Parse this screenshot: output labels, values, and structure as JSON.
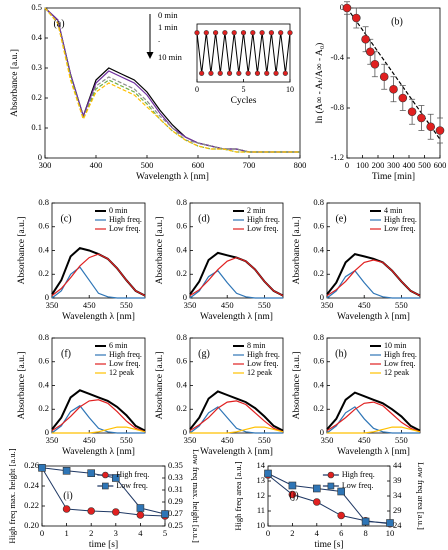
{
  "chart_data": [
    {
      "type": "line",
      "label": "(a)",
      "xlabel": "Wavelength λ [nm]",
      "ylabel": "Absorbance [a.u.]",
      "annotations": [
        "0 min",
        "1 min",
        ".",
        "10 min"
      ],
      "xlim": [
        300,
        800
      ],
      "xticks": [
        300,
        400,
        500,
        600,
        700,
        800
      ],
      "ylim": [
        0,
        0.5
      ],
      "yticks": [
        0,
        0.1,
        0.2,
        0.3,
        0.4,
        0.5
      ],
      "x": [
        300,
        325,
        350,
        375,
        400,
        425,
        450,
        475,
        500,
        525,
        550,
        575,
        600,
        625,
        650,
        675,
        700,
        725,
        750,
        775,
        800
      ],
      "series": [
        {
          "color": "#000000",
          "values": [
            0.5,
            0.46,
            0.28,
            0.14,
            0.26,
            0.3,
            0.28,
            0.26,
            0.22,
            0.16,
            0.11,
            0.07,
            0.05,
            0.04,
            0.03,
            0.03,
            0.02,
            0.02,
            0.02,
            0.02,
            0.02
          ]
        },
        {
          "color": "#7030a0",
          "values": [
            0.5,
            0.46,
            0.28,
            0.14,
            0.25,
            0.29,
            0.27,
            0.25,
            0.21,
            0.15,
            0.1,
            0.07,
            0.05,
            0.04,
            0.03,
            0.03,
            0.02,
            0.02,
            0.02,
            0.02,
            0.02
          ]
        },
        {
          "color": "#8c8c8c",
          "dash": true,
          "values": [
            0.5,
            0.45,
            0.27,
            0.13,
            0.24,
            0.27,
            0.25,
            0.23,
            0.19,
            0.14,
            0.1,
            0.06,
            0.05,
            0.04,
            0.03,
            0.03,
            0.02,
            0.02,
            0.02,
            0.02,
            0.02
          ]
        },
        {
          "color": "#70ad47",
          "dash": true,
          "values": [
            0.5,
            0.45,
            0.27,
            0.13,
            0.23,
            0.26,
            0.24,
            0.22,
            0.18,
            0.13,
            0.09,
            0.06,
            0.04,
            0.03,
            0.03,
            0.02,
            0.02,
            0.02,
            0.02,
            0.02,
            0.02
          ]
        },
        {
          "color": "#ffc000",
          "dash": true,
          "values": [
            0.5,
            0.45,
            0.26,
            0.13,
            0.22,
            0.25,
            0.23,
            0.21,
            0.17,
            0.13,
            0.09,
            0.06,
            0.04,
            0.03,
            0.03,
            0.02,
            0.02,
            0.02,
            0.02,
            0.02,
            0.02
          ]
        }
      ]
    },
    {
      "type": "line",
      "xlabel": "Cycles",
      "xlim": [
        0,
        10
      ],
      "xticks": [
        0,
        5,
        10
      ],
      "ylim": [
        0,
        1
      ],
      "x": [
        0,
        0.5,
        1,
        1.5,
        2,
        2.5,
        3,
        3.5,
        4,
        4.5,
        5,
        5.5,
        6,
        6.5,
        7,
        7.5,
        8,
        8.5,
        9,
        9.5,
        10
      ],
      "series": [
        {
          "color": "#000000",
          "marker": "circle",
          "marker_color": "#e02020",
          "values": [
            0.85,
            0.15,
            0.85,
            0.15,
            0.85,
            0.15,
            0.85,
            0.15,
            0.85,
            0.15,
            0.85,
            0.15,
            0.85,
            0.15,
            0.85,
            0.15,
            0.85,
            0.15,
            0.85,
            0.15,
            0.85
          ]
        }
      ]
    },
    {
      "type": "scatter",
      "label": "(b)",
      "xlabel": "Time [min]",
      "ylabel": "ln (A∞ - Aₜ/A∞ - A₀)",
      "xlim": [
        0,
        600
      ],
      "xticks": [
        0,
        100,
        200,
        300,
        400,
        500,
        600
      ],
      "ylim": [
        -1.2,
        0
      ],
      "yticks": [
        0,
        -0.4,
        -0.8,
        -1.2
      ],
      "x": [
        0,
        60,
        120,
        150,
        180,
        240,
        300,
        360,
        420,
        480,
        540,
        600
      ],
      "series": [
        {
          "color": "#000000",
          "dash": true,
          "x": [
            0,
            600
          ],
          "values": [
            0,
            -1.05
          ]
        },
        {
          "color": "#e02020",
          "marker": "circle",
          "line": false,
          "values": [
            0,
            -0.08,
            -0.25,
            -0.35,
            -0.45,
            -0.55,
            -0.65,
            -0.72,
            -0.83,
            -0.88,
            -0.95,
            -0.98
          ],
          "errors": [
            0.05,
            0.08,
            0.1,
            0.1,
            0.1,
            0.1,
            0.1,
            0.1,
            0.1,
            0.1,
            0.1,
            0.1
          ]
        }
      ]
    },
    {
      "type": "line",
      "label": "(c)",
      "xlabel": "Wavelength λ [nm]",
      "ylabel": "Absorbance [a.u.]",
      "legend": "upper right",
      "xlim": [
        350,
        600
      ],
      "xticks": [
        350,
        450,
        550
      ],
      "ylim": [
        0,
        0.8
      ],
      "yticks": [
        0,
        0.2,
        0.4,
        0.6,
        0.8
      ],
      "x": [
        350,
        375,
        400,
        425,
        450,
        475,
        500,
        525,
        550,
        575,
        600
      ],
      "series": [
        {
          "name": "0 min",
          "color": "#000000",
          "width": 2,
          "values": [
            0.03,
            0.15,
            0.35,
            0.42,
            0.4,
            0.37,
            0.33,
            0.25,
            0.15,
            0.06,
            0.02
          ]
        },
        {
          "name": "High freq.",
          "color": "#2e75b6",
          "values": [
            0,
            0.06,
            0.2,
            0.26,
            0.15,
            0.04,
            0.01,
            0,
            0,
            0,
            0
          ]
        },
        {
          "name": "Low freq.",
          "color": "#e02020",
          "values": [
            0.02,
            0.08,
            0.17,
            0.27,
            0.34,
            0.37,
            0.33,
            0.25,
            0.15,
            0.06,
            0.02
          ]
        }
      ]
    },
    {
      "type": "line",
      "label": "(d)",
      "xlabel": "Wavelength λ [nm]",
      "ylabel": "Absorbance [a.u.]",
      "legend": "upper right",
      "xlim": [
        350,
        600
      ],
      "xticks": [
        350,
        450,
        550
      ],
      "ylim": [
        0,
        0.8
      ],
      "yticks": [
        0,
        0.2,
        0.4,
        0.6,
        0.8
      ],
      "x": [
        350,
        375,
        400,
        425,
        450,
        475,
        500,
        525,
        550,
        575,
        600
      ],
      "series": [
        {
          "name": "2 min",
          "color": "#000000",
          "width": 2,
          "values": [
            0.03,
            0.14,
            0.32,
            0.38,
            0.36,
            0.34,
            0.31,
            0.24,
            0.14,
            0.06,
            0.02
          ]
        },
        {
          "name": "High freq.",
          "color": "#2e75b6",
          "values": [
            0,
            0.06,
            0.18,
            0.23,
            0.13,
            0.04,
            0.01,
            0,
            0,
            0,
            0
          ]
        },
        {
          "name": "Low freq.",
          "color": "#e02020",
          "values": [
            0.02,
            0.07,
            0.15,
            0.24,
            0.31,
            0.34,
            0.31,
            0.24,
            0.14,
            0.06,
            0.02
          ]
        }
      ]
    },
    {
      "type": "line",
      "label": "(e)",
      "xlabel": "Wavelength λ [nm]",
      "ylabel": "Absorbance [a.u.]",
      "legend": "upper right",
      "xlim": [
        350,
        600
      ],
      "xticks": [
        350,
        450,
        550
      ],
      "ylim": [
        0,
        0.8
      ],
      "yticks": [
        0,
        0.2,
        0.4,
        0.6,
        0.8
      ],
      "x": [
        350,
        375,
        400,
        425,
        450,
        475,
        500,
        525,
        550,
        575,
        600
      ],
      "series": [
        {
          "name": "4 min",
          "color": "#000000",
          "width": 2,
          "values": [
            0.03,
            0.13,
            0.3,
            0.37,
            0.35,
            0.33,
            0.3,
            0.23,
            0.14,
            0.06,
            0.02
          ]
        },
        {
          "name": "High freq.",
          "color": "#2e75b6",
          "values": [
            0,
            0.06,
            0.18,
            0.23,
            0.13,
            0.04,
            0.01,
            0,
            0,
            0,
            0
          ]
        },
        {
          "name": "Low freq.",
          "color": "#e02020",
          "values": [
            0.02,
            0.07,
            0.14,
            0.23,
            0.3,
            0.32,
            0.3,
            0.23,
            0.14,
            0.06,
            0.02
          ]
        }
      ]
    },
    {
      "type": "line",
      "label": "(f)",
      "xlabel": "Wavelength λ [nm]",
      "ylabel": "Absorbance [a.u.]",
      "legend": "upper right",
      "xlim": [
        350,
        600
      ],
      "xticks": [
        350,
        450,
        550
      ],
      "ylim": [
        0,
        0.8
      ],
      "yticks": [
        0,
        0.2,
        0.4,
        0.6,
        0.8
      ],
      "x": [
        350,
        375,
        400,
        425,
        450,
        475,
        500,
        525,
        550,
        575,
        600
      ],
      "series": [
        {
          "name": "6 min",
          "color": "#000000",
          "width": 2,
          "values": [
            0.03,
            0.13,
            0.3,
            0.36,
            0.33,
            0.3,
            0.27,
            0.22,
            0.15,
            0.06,
            0.02
          ]
        },
        {
          "name": "High freq.",
          "color": "#2e75b6",
          "values": [
            0,
            0.06,
            0.18,
            0.23,
            0.13,
            0.04,
            0.01,
            0,
            0,
            0,
            0
          ]
        },
        {
          "name": "Low freq.",
          "color": "#e02020",
          "values": [
            0.02,
            0.07,
            0.14,
            0.22,
            0.27,
            0.28,
            0.25,
            0.18,
            0.1,
            0.04,
            0.01
          ]
        },
        {
          "name": "12 peak",
          "color": "#ffc000",
          "values": [
            0,
            0,
            0,
            0,
            0,
            0.01,
            0.03,
            0.05,
            0.05,
            0.03,
            0.01
          ]
        }
      ]
    },
    {
      "type": "line",
      "label": "(g)",
      "xlabel": "Wavelength λ [nm]",
      "ylabel": "Absorbance [a.u.]",
      "legend": "upper right",
      "xlim": [
        350,
        600
      ],
      "xticks": [
        350,
        450,
        550
      ],
      "ylim": [
        0,
        0.8
      ],
      "yticks": [
        0,
        0.2,
        0.4,
        0.6,
        0.8
      ],
      "x": [
        350,
        375,
        400,
        425,
        450,
        475,
        500,
        525,
        550,
        575,
        600
      ],
      "series": [
        {
          "name": "8 min",
          "color": "#000000",
          "width": 2,
          "values": [
            0.03,
            0.13,
            0.29,
            0.35,
            0.32,
            0.29,
            0.26,
            0.21,
            0.14,
            0.06,
            0.02
          ]
        },
        {
          "name": "High freq.",
          "color": "#2e75b6",
          "values": [
            0,
            0.06,
            0.17,
            0.22,
            0.13,
            0.04,
            0.01,
            0,
            0,
            0,
            0
          ]
        },
        {
          "name": "Low freq.",
          "color": "#e02020",
          "values": [
            0.02,
            0.07,
            0.13,
            0.21,
            0.26,
            0.27,
            0.24,
            0.17,
            0.1,
            0.04,
            0.01
          ]
        },
        {
          "name": "12 peak",
          "color": "#ffc000",
          "values": [
            0,
            0,
            0,
            0,
            0,
            0.01,
            0.03,
            0.05,
            0.05,
            0.03,
            0.01
          ]
        }
      ]
    },
    {
      "type": "line",
      "label": "(h)",
      "xlabel": "Wavelength λ [nm]",
      "ylabel": "Absorbance [a.u.]",
      "legend": "upper right",
      "xlim": [
        350,
        600
      ],
      "xticks": [
        350,
        450,
        550
      ],
      "ylim": [
        0,
        0.8
      ],
      "yticks": [
        0,
        0.2,
        0.4,
        0.6,
        0.8
      ],
      "x": [
        350,
        375,
        400,
        425,
        450,
        475,
        500,
        525,
        550,
        575,
        600
      ],
      "series": [
        {
          "name": "10 min",
          "color": "#000000",
          "width": 2,
          "values": [
            0.03,
            0.12,
            0.28,
            0.34,
            0.31,
            0.28,
            0.25,
            0.2,
            0.14,
            0.06,
            0.02
          ]
        },
        {
          "name": "High freq.",
          "color": "#2e75b6",
          "values": [
            0,
            0.06,
            0.17,
            0.22,
            0.12,
            0.04,
            0.01,
            0,
            0,
            0,
            0
          ]
        },
        {
          "name": "Low freq.",
          "color": "#e02020",
          "values": [
            0.02,
            0.07,
            0.13,
            0.2,
            0.25,
            0.26,
            0.23,
            0.16,
            0.09,
            0.04,
            0.01
          ]
        },
        {
          "name": "12 peak",
          "color": "#ffc000",
          "values": [
            0,
            0,
            0,
            0,
            0,
            0.01,
            0.03,
            0.05,
            0.05,
            0.03,
            0.01
          ]
        }
      ]
    },
    {
      "type": "line",
      "label": "(i)",
      "xlabel": "time [s]",
      "ylabel": "High freq max. height [a.u.]",
      "y2label": "Low freq max. height [a.u.]",
      "legend": "upper right",
      "xlim": [
        0,
        5
      ],
      "xticks": [
        0,
        1,
        2,
        3,
        4,
        5
      ],
      "ylim": [
        0.2,
        0.26
      ],
      "yticks": [
        {
          "value": 0.2,
          "label": "0.20"
        },
        0.22,
        0.24,
        0.26
      ],
      "y2lim": [
        0.25,
        0.35
      ],
      "y2ticks": [
        0.25,
        0.27,
        0.29,
        0.31,
        0.33,
        0.35
      ],
      "x": [
        0,
        1,
        2,
        3,
        4,
        5
      ],
      "series": [
        {
          "name": "High freq.",
          "color": "#e02020",
          "line_color": "#1f3864",
          "marker": "circle",
          "values": [
            0.258,
            0.217,
            0.215,
            0.214,
            0.211,
            0.21
          ]
        },
        {
          "name": "Low freq.",
          "color": "#2e75b6",
          "line_color": "#1f3864",
          "marker": "square",
          "axis": "y2",
          "values": [
            0.347,
            0.342,
            0.338,
            0.33,
            0.28,
            0.27
          ]
        }
      ]
    },
    {
      "type": "line",
      "label": "(j)",
      "xlabel": "time [s]",
      "ylabel": "High freq area [a.u.]",
      "y2label": "Low freq area [a.u.]",
      "legend": "upper right",
      "xlim": [
        0,
        10
      ],
      "xticks": [
        0,
        2,
        4,
        6,
        8,
        10
      ],
      "ylim": [
        10,
        14
      ],
      "yticks": [
        10,
        11,
        12,
        13,
        14
      ],
      "y2lim": [
        24,
        44
      ],
      "y2ticks": [
        24,
        29,
        34,
        39,
        44
      ],
      "x": [
        0,
        2,
        4,
        6,
        8,
        10
      ],
      "series": [
        {
          "name": "High freq.",
          "color": "#e02020",
          "line_color": "#1f3864",
          "marker": "circle",
          "values": [
            13.4,
            12.1,
            11.6,
            10.7,
            10.35,
            10.15
          ]
        },
        {
          "name": "Low freq.",
          "color": "#2e75b6",
          "line_color": "#1f3864",
          "marker": "square",
          "axis": "y2",
          "values": [
            41.5,
            37.5,
            36.5,
            35.5,
            25.5,
            25
          ]
        }
      ]
    }
  ]
}
